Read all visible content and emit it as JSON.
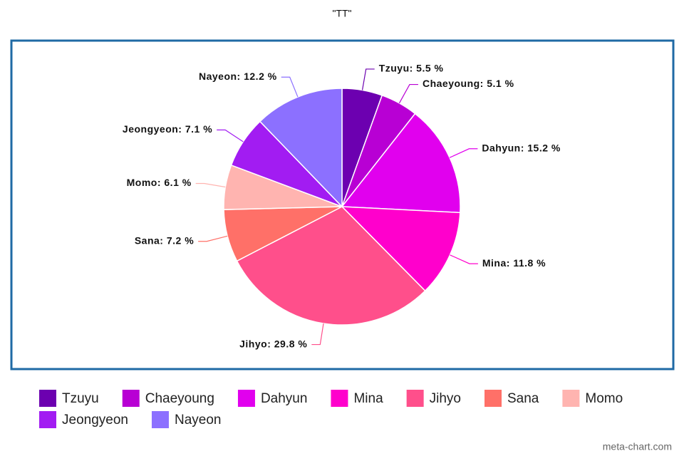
{
  "chart_data": {
    "type": "pie",
    "title": "\"TT\"",
    "categories": [
      "Tzuyu",
      "Chaeyoung",
      "Dahyun",
      "Mina",
      "Jihyo",
      "Sana",
      "Momo",
      "Jeongyeon",
      "Nayeon"
    ],
    "values": [
      5.5,
      5.1,
      15.2,
      11.8,
      29.8,
      7.2,
      6.1,
      7.1,
      12.2
    ],
    "value_labels": [
      "Tzuyu: 5.5 %",
      "Chaeyoung: 5.1 %",
      "Dahyun: 15.2 %",
      "Mina: 11.8 %",
      "Jihyo: 29.8 %",
      "Sana: 7.2 %",
      "Momo: 6.1 %",
      "Jeongyeon: 7.1 %",
      "Nayeon: 12.2 %"
    ],
    "colors": [
      "#6c00b0",
      "#b800d4",
      "#e100ee",
      "#ff00cc",
      "#ff4f8b",
      "#ff7068",
      "#ffb4b0",
      "#a21cf2",
      "#8c70ff"
    ],
    "legend": "bottom",
    "source": "meta-chart.com"
  }
}
